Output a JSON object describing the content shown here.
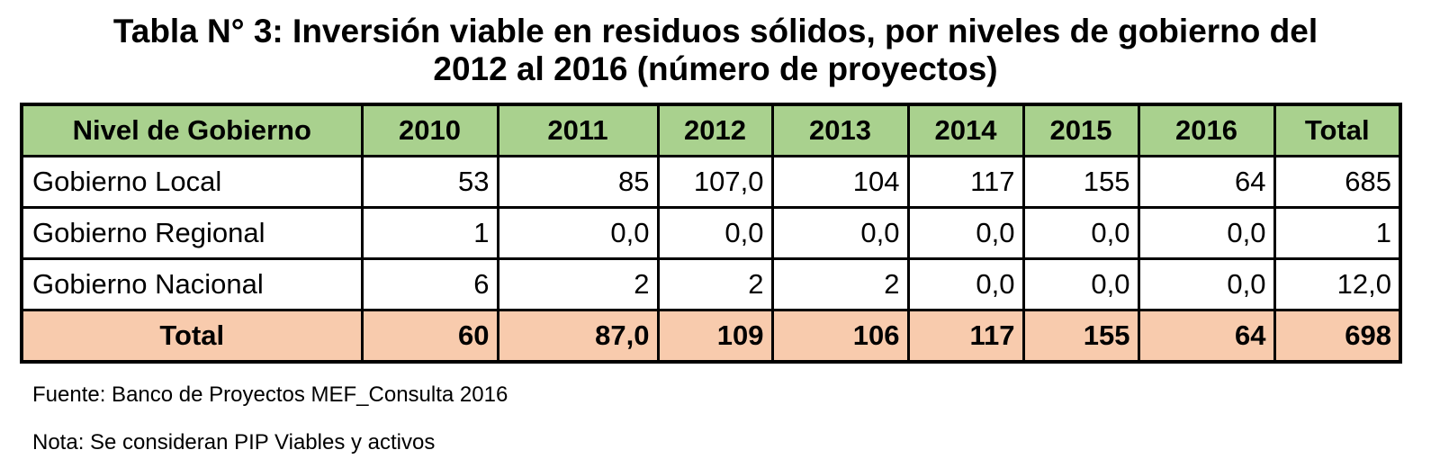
{
  "title": {
    "line1": "Tabla N° 3: Inversión viable en residuos sólidos, por niveles de gobierno del",
    "line2": "2012 al 2016 (número de proyectos)"
  },
  "table": {
    "headers": [
      "Nivel de Gobierno",
      "2010",
      "2011",
      "2012",
      "2013",
      "2014",
      "2015",
      "2016",
      "Total"
    ],
    "rows": [
      [
        "Gobierno Local",
        "53",
        "85",
        "107,0",
        "104",
        "117",
        "155",
        "64",
        "685"
      ],
      [
        "Gobierno Regional",
        "1",
        "0,0",
        "0,0",
        "0,0",
        "0,0",
        "0,0",
        "0,0",
        "1"
      ],
      [
        "Gobierno Nacional",
        "6",
        "2",
        "2",
        "2",
        "0,0",
        "0,0",
        "0,0",
        "12,0"
      ]
    ],
    "total_row": [
      "Total",
      "60",
      "87,0",
      "109",
      "106",
      "117",
      "155",
      "64",
      "698"
    ]
  },
  "footnotes": {
    "source": "Fuente: Banco de Proyectos MEF_Consulta 2016",
    "note": "Nota: Se consideran PIP Viables y activos"
  },
  "colors": {
    "header_bg": "#a9d18e",
    "total_bg": "#f8cbad",
    "border": "#000000"
  }
}
